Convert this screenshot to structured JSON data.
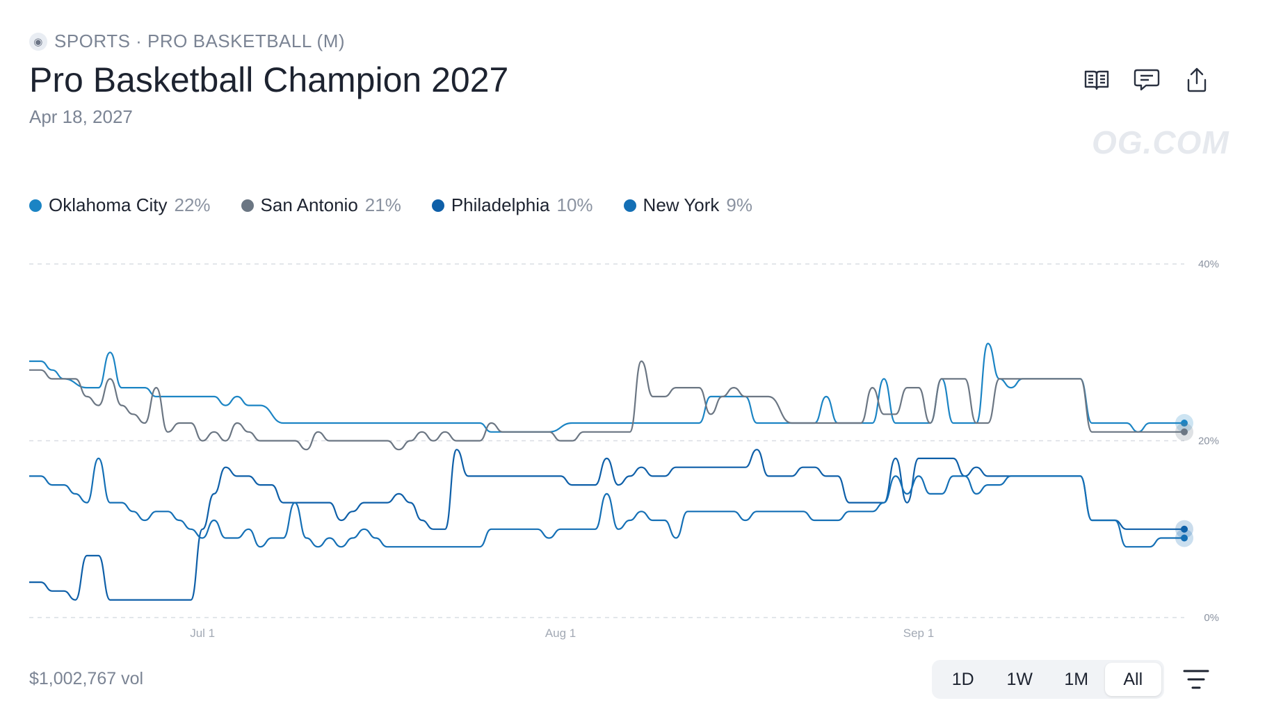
{
  "header": {
    "breadcrumb": "SPORTS · PRO BASKETBALL (M)",
    "title": "Pro Basketball Champion 2027",
    "date": "Apr 18, 2027",
    "watermark": "OG.COM",
    "actions": [
      {
        "icon": "book-icon"
      },
      {
        "icon": "comment-icon"
      },
      {
        "icon": "share-icon"
      }
    ]
  },
  "legend": [
    {
      "name": "Oklahoma City",
      "pct": "22%",
      "color": "#1b84c4"
    },
    {
      "name": "San Antonio",
      "pct": "21%",
      "color": "#6b7683"
    },
    {
      "name": "Philadelphia",
      "pct": "10%",
      "color": "#0e5fa8"
    },
    {
      "name": "New York",
      "pct": "9%",
      "color": "#146fb5"
    }
  ],
  "footer": {
    "volume": "$1,002,767 vol",
    "ranges": [
      "1D",
      "1W",
      "1M",
      "All"
    ],
    "active_range": "All"
  },
  "chart_data": {
    "type": "line",
    "x_axis": {
      "type": "date",
      "ticks": [
        {
          "label": "Jul 1",
          "date": "2027-07-01"
        },
        {
          "label": "Aug 1",
          "date": "2027-08-01"
        },
        {
          "label": "Sep 1",
          "date": "2027-09-01"
        }
      ]
    },
    "ylim": [
      0,
      40
    ],
    "y_ticks": [
      {
        "value": 0,
        "label": "0%"
      },
      {
        "value": 20,
        "label": "20%"
      },
      {
        "value": 40,
        "label": "40%"
      }
    ],
    "y_axis_side": "right",
    "grid": "horizontal dashed",
    "series": [
      {
        "name": "Oklahoma City",
        "color": "#1b84c4",
        "points": [
          [
            "2027-06-16",
            29
          ],
          [
            "2027-06-17",
            29
          ],
          [
            "2027-06-18",
            28
          ],
          [
            "2027-06-19",
            27
          ],
          [
            "2027-06-21",
            26
          ],
          [
            "2027-06-22",
            26
          ],
          [
            "2027-06-23",
            30
          ],
          [
            "2027-06-24",
            26
          ],
          [
            "2027-06-26",
            26
          ],
          [
            "2027-06-27",
            25
          ],
          [
            "2027-06-29",
            25
          ],
          [
            "2027-07-02",
            25
          ],
          [
            "2027-07-03",
            24
          ],
          [
            "2027-07-04",
            25
          ],
          [
            "2027-07-05",
            24
          ],
          [
            "2027-07-06",
            24
          ],
          [
            "2027-07-08",
            22
          ],
          [
            "2027-07-15",
            22
          ],
          [
            "2027-07-25",
            22
          ],
          [
            "2027-07-26",
            21
          ],
          [
            "2027-07-30",
            21
          ],
          [
            "2027-07-31",
            21
          ],
          [
            "2027-08-02",
            22
          ],
          [
            "2027-08-05",
            22
          ],
          [
            "2027-08-08",
            22
          ],
          [
            "2027-08-10",
            22
          ],
          [
            "2027-08-13",
            22
          ],
          [
            "2027-08-14",
            25
          ],
          [
            "2027-08-17",
            25
          ],
          [
            "2027-08-18",
            22
          ],
          [
            "2027-08-20",
            22
          ],
          [
            "2027-08-23",
            22
          ],
          [
            "2027-08-24",
            25
          ],
          [
            "2027-08-25",
            22
          ],
          [
            "2027-08-27",
            22
          ],
          [
            "2027-08-28",
            22
          ],
          [
            "2027-08-29",
            27
          ],
          [
            "2027-08-30",
            22
          ],
          [
            "2027-09-01",
            22
          ],
          [
            "2027-09-02",
            22
          ],
          [
            "2027-09-03",
            27
          ],
          [
            "2027-09-04",
            22
          ],
          [
            "2027-09-06",
            22
          ],
          [
            "2027-09-07",
            31
          ],
          [
            "2027-09-08",
            27
          ],
          [
            "2027-09-09",
            26
          ],
          [
            "2027-09-10",
            27
          ],
          [
            "2027-09-15",
            27
          ],
          [
            "2027-09-16",
            22
          ],
          [
            "2027-09-19",
            22
          ],
          [
            "2027-09-20",
            21
          ],
          [
            "2027-09-21",
            22
          ],
          [
            "2027-09-24",
            22
          ]
        ]
      },
      {
        "name": "San Antonio",
        "color": "#6b7683",
        "points": [
          [
            "2027-06-16",
            28
          ],
          [
            "2027-06-17",
            28
          ],
          [
            "2027-06-18",
            27
          ],
          [
            "2027-06-20",
            27
          ],
          [
            "2027-06-21",
            25
          ],
          [
            "2027-06-22",
            24
          ],
          [
            "2027-06-23",
            27
          ],
          [
            "2027-06-24",
            24
          ],
          [
            "2027-06-25",
            23
          ],
          [
            "2027-06-26",
            22
          ],
          [
            "2027-06-27",
            26
          ],
          [
            "2027-06-28",
            21
          ],
          [
            "2027-06-29",
            22
          ],
          [
            "2027-06-30",
            22
          ],
          [
            "2027-07-01",
            20
          ],
          [
            "2027-07-02",
            21
          ],
          [
            "2027-07-03",
            20
          ],
          [
            "2027-07-04",
            22
          ],
          [
            "2027-07-05",
            21
          ],
          [
            "2027-07-06",
            20
          ],
          [
            "2027-07-09",
            20
          ],
          [
            "2027-07-10",
            19
          ],
          [
            "2027-07-11",
            21
          ],
          [
            "2027-07-12",
            20
          ],
          [
            "2027-07-17",
            20
          ],
          [
            "2027-07-18",
            19
          ],
          [
            "2027-07-19",
            20
          ],
          [
            "2027-07-20",
            21
          ],
          [
            "2027-07-21",
            20
          ],
          [
            "2027-07-22",
            21
          ],
          [
            "2027-07-23",
            20
          ],
          [
            "2027-07-25",
            20
          ],
          [
            "2027-07-26",
            22
          ],
          [
            "2027-07-27",
            21
          ],
          [
            "2027-07-31",
            21
          ],
          [
            "2027-08-01",
            20
          ],
          [
            "2027-08-02",
            20
          ],
          [
            "2027-08-03",
            21
          ],
          [
            "2027-08-05",
            21
          ],
          [
            "2027-08-06",
            21
          ],
          [
            "2027-08-07",
            21
          ],
          [
            "2027-08-08",
            29
          ],
          [
            "2027-08-09",
            25
          ],
          [
            "2027-08-10",
            25
          ],
          [
            "2027-08-11",
            26
          ],
          [
            "2027-08-13",
            26
          ],
          [
            "2027-08-14",
            23
          ],
          [
            "2027-08-15",
            25
          ],
          [
            "2027-08-16",
            26
          ],
          [
            "2027-08-17",
            25
          ],
          [
            "2027-08-19",
            25
          ],
          [
            "2027-08-21",
            22
          ],
          [
            "2027-08-25",
            22
          ],
          [
            "2027-08-27",
            22
          ],
          [
            "2027-08-28",
            26
          ],
          [
            "2027-08-29",
            23
          ],
          [
            "2027-08-30",
            23
          ],
          [
            "2027-08-31",
            26
          ],
          [
            "2027-09-01",
            26
          ],
          [
            "2027-09-02",
            22
          ],
          [
            "2027-09-03",
            27
          ],
          [
            "2027-09-05",
            27
          ],
          [
            "2027-09-06",
            22
          ],
          [
            "2027-09-07",
            22
          ],
          [
            "2027-09-08",
            27
          ],
          [
            "2027-09-15",
            27
          ],
          [
            "2027-09-16",
            21
          ],
          [
            "2027-09-19",
            21
          ],
          [
            "2027-09-24",
            21
          ]
        ]
      },
      {
        "name": "Philadelphia",
        "color": "#0e5fa8",
        "points": [
          [
            "2027-06-16",
            4
          ],
          [
            "2027-06-17",
            4
          ],
          [
            "2027-06-18",
            3
          ],
          [
            "2027-06-19",
            3
          ],
          [
            "2027-06-20",
            2
          ],
          [
            "2027-06-21",
            7
          ],
          [
            "2027-06-22",
            7
          ],
          [
            "2027-06-23",
            2
          ],
          [
            "2027-06-30",
            2
          ],
          [
            "2027-07-01",
            10
          ],
          [
            "2027-07-02",
            14
          ],
          [
            "2027-07-03",
            17
          ],
          [
            "2027-07-04",
            16
          ],
          [
            "2027-07-05",
            16
          ],
          [
            "2027-07-06",
            15
          ],
          [
            "2027-07-07",
            15
          ],
          [
            "2027-07-08",
            13
          ],
          [
            "2027-07-12",
            13
          ],
          [
            "2027-07-13",
            11
          ],
          [
            "2027-07-14",
            12
          ],
          [
            "2027-07-15",
            13
          ],
          [
            "2027-07-17",
            13
          ],
          [
            "2027-07-18",
            14
          ],
          [
            "2027-07-19",
            13
          ],
          [
            "2027-07-20",
            11
          ],
          [
            "2027-07-21",
            10
          ],
          [
            "2027-07-22",
            10
          ],
          [
            "2027-07-23",
            19
          ],
          [
            "2027-07-24",
            16
          ],
          [
            "2027-07-28",
            16
          ],
          [
            "2027-08-01",
            16
          ],
          [
            "2027-08-02",
            15
          ],
          [
            "2027-08-04",
            15
          ],
          [
            "2027-08-05",
            18
          ],
          [
            "2027-08-06",
            15
          ],
          [
            "2027-08-07",
            16
          ],
          [
            "2027-08-08",
            17
          ],
          [
            "2027-08-09",
            16
          ],
          [
            "2027-08-10",
            16
          ],
          [
            "2027-08-11",
            17
          ],
          [
            "2027-08-14",
            17
          ],
          [
            "2027-08-17",
            17
          ],
          [
            "2027-08-18",
            19
          ],
          [
            "2027-08-19",
            16
          ],
          [
            "2027-08-21",
            16
          ],
          [
            "2027-08-22",
            17
          ],
          [
            "2027-08-23",
            17
          ],
          [
            "2027-08-24",
            16
          ],
          [
            "2027-08-25",
            16
          ],
          [
            "2027-08-26",
            13
          ],
          [
            "2027-08-28",
            13
          ],
          [
            "2027-08-29",
            13
          ],
          [
            "2027-08-30",
            18
          ],
          [
            "2027-08-31",
            13
          ],
          [
            "2027-09-01",
            18
          ],
          [
            "2027-09-04",
            18
          ],
          [
            "2027-09-05",
            16
          ],
          [
            "2027-09-06",
            17
          ],
          [
            "2027-09-07",
            16
          ],
          [
            "2027-09-09",
            16
          ],
          [
            "2027-09-10",
            16
          ],
          [
            "2027-09-15",
            16
          ],
          [
            "2027-09-16",
            11
          ],
          [
            "2027-09-18",
            11
          ],
          [
            "2027-09-19",
            10
          ],
          [
            "2027-09-24",
            10
          ]
        ]
      },
      {
        "name": "New York",
        "color": "#146fb5",
        "points": [
          [
            "2027-06-16",
            16
          ],
          [
            "2027-06-17",
            16
          ],
          [
            "2027-06-18",
            15
          ],
          [
            "2027-06-19",
            15
          ],
          [
            "2027-06-20",
            14
          ],
          [
            "2027-06-21",
            13
          ],
          [
            "2027-06-22",
            18
          ],
          [
            "2027-06-23",
            13
          ],
          [
            "2027-06-24",
            13
          ],
          [
            "2027-06-25",
            12
          ],
          [
            "2027-06-26",
            11
          ],
          [
            "2027-06-27",
            12
          ],
          [
            "2027-06-28",
            12
          ],
          [
            "2027-06-29",
            11
          ],
          [
            "2027-06-30",
            10
          ],
          [
            "2027-07-01",
            9
          ],
          [
            "2027-07-02",
            11
          ],
          [
            "2027-07-03",
            9
          ],
          [
            "2027-07-04",
            9
          ],
          [
            "2027-07-05",
            10
          ],
          [
            "2027-07-06",
            8
          ],
          [
            "2027-07-07",
            9
          ],
          [
            "2027-07-08",
            9
          ],
          [
            "2027-07-09",
            13
          ],
          [
            "2027-07-10",
            9
          ],
          [
            "2027-07-11",
            8
          ],
          [
            "2027-07-12",
            9
          ],
          [
            "2027-07-13",
            8
          ],
          [
            "2027-07-14",
            9
          ],
          [
            "2027-07-15",
            10
          ],
          [
            "2027-07-16",
            9
          ],
          [
            "2027-07-17",
            8
          ],
          [
            "2027-07-25",
            8
          ],
          [
            "2027-07-26",
            10
          ],
          [
            "2027-07-30",
            10
          ],
          [
            "2027-07-31",
            9
          ],
          [
            "2027-08-01",
            10
          ],
          [
            "2027-08-04",
            10
          ],
          [
            "2027-08-05",
            14
          ],
          [
            "2027-08-06",
            10
          ],
          [
            "2027-08-07",
            11
          ],
          [
            "2027-08-08",
            12
          ],
          [
            "2027-08-09",
            11
          ],
          [
            "2027-08-10",
            11
          ],
          [
            "2027-08-11",
            9
          ],
          [
            "2027-08-12",
            12
          ],
          [
            "2027-08-13",
            12
          ],
          [
            "2027-08-16",
            12
          ],
          [
            "2027-08-17",
            11
          ],
          [
            "2027-08-18",
            12
          ],
          [
            "2027-08-21",
            12
          ],
          [
            "2027-08-22",
            12
          ],
          [
            "2027-08-23",
            11
          ],
          [
            "2027-08-25",
            11
          ],
          [
            "2027-08-26",
            12
          ],
          [
            "2027-08-28",
            12
          ],
          [
            "2027-08-29",
            13
          ],
          [
            "2027-08-30",
            16
          ],
          [
            "2027-08-31",
            14
          ],
          [
            "2027-09-01",
            16
          ],
          [
            "2027-09-02",
            14
          ],
          [
            "2027-09-03",
            14
          ],
          [
            "2027-09-04",
            16
          ],
          [
            "2027-09-05",
            16
          ],
          [
            "2027-09-06",
            14
          ],
          [
            "2027-09-07",
            15
          ],
          [
            "2027-09-08",
            15
          ],
          [
            "2027-09-09",
            16
          ],
          [
            "2027-09-10",
            16
          ],
          [
            "2027-09-15",
            16
          ],
          [
            "2027-09-16",
            11
          ],
          [
            "2027-09-18",
            11
          ],
          [
            "2027-09-19",
            8
          ],
          [
            "2027-09-21",
            8
          ],
          [
            "2027-09-22",
            9
          ],
          [
            "2027-09-24",
            9
          ]
        ]
      }
    ]
  }
}
